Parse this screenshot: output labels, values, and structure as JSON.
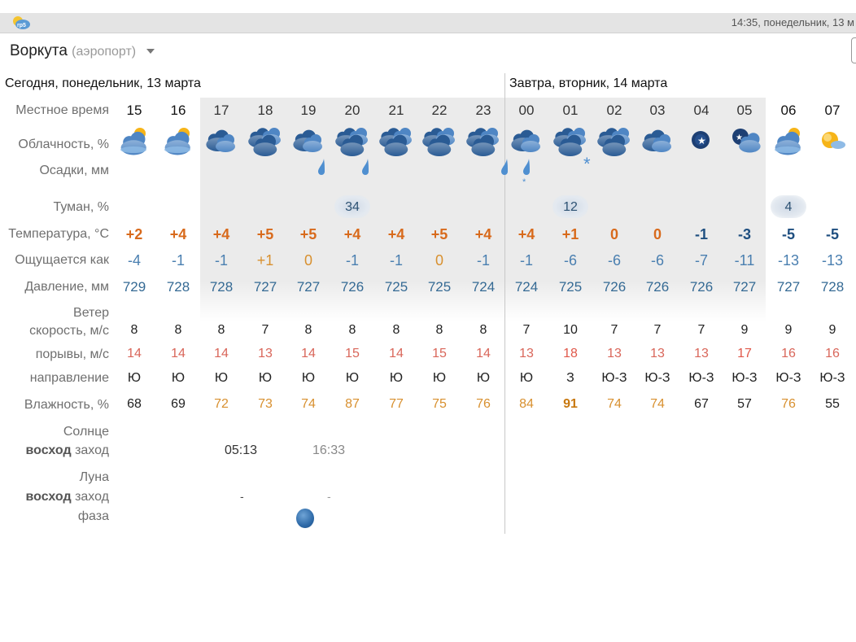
{
  "status": {
    "time": "14:35, понедельник, 13 м",
    "app_logo": "rp5"
  },
  "location": {
    "city": "Воркута",
    "sub": "(аэропорт)"
  },
  "days": {
    "today": "Сегодня, понедельник, 13 марта",
    "tomorrow": "Завтра, вторник, 14 марта"
  },
  "labels": {
    "local_time": "Местное время",
    "cloud": "Облачность, %",
    "precip": "Осадки, мм",
    "fog": "Туман, %",
    "temp": "Температура, °C",
    "feels": "Ощущается как",
    "pressure": "Давление, мм",
    "wind": "Ветер",
    "wind_speed": "скорость, м/с",
    "gusts": "порывы, м/с",
    "direction": "направление",
    "humidity": "Влажность, %",
    "sun": "Солнце",
    "sunrise": "восход",
    "sunset": "заход",
    "moon": "Луна",
    "moonrise": "восход",
    "moonset": "заход",
    "phase": "фаза"
  },
  "hours": [
    "15",
    "16",
    "17",
    "18",
    "19",
    "20",
    "21",
    "22",
    "23",
    "00",
    "01",
    "02",
    "03",
    "04",
    "05",
    "06",
    "07"
  ],
  "cloud_icons": [
    "partly-cloudy-icon",
    "partly-cloudy-icon",
    "cloudy-icon",
    "overcast-icon",
    "cloudy-icon",
    "overcast-icon",
    "overcast-icon",
    "overcast-icon",
    "overcast-icon",
    "cloudy-icon",
    "overcast-icon",
    "overcast-icon",
    "cloudy-icon",
    "night-clear-icon",
    "night-cloudy-icon",
    "partly-cloudy-icon",
    "sunny-icon"
  ],
  "precip_icons": [
    "",
    "",
    "",
    "",
    "rain-drop-icon",
    "rain-drop-icon",
    "",
    "",
    "rain-drop-icon",
    "rain-snow-icon",
    "snowflake-icon",
    "",
    "",
    "",
    "",
    "",
    ""
  ],
  "fog": [
    "",
    "",
    "",
    "",
    "",
    "34",
    "",
    "",
    "",
    "",
    "12",
    "",
    "",
    "",
    "",
    "4",
    ""
  ],
  "temps": [
    "+2",
    "+4",
    "+4",
    "+5",
    "+5",
    "+4",
    "+4",
    "+5",
    "+4",
    "+4",
    "+1",
    "0",
    "0",
    "-1",
    "-3",
    "-5",
    "-5"
  ],
  "feels": [
    "-4",
    "-1",
    "-1",
    "+1",
    "0",
    "-1",
    "-1",
    "0",
    "-1",
    "-1",
    "-6",
    "-6",
    "-6",
    "-7",
    "-11",
    "-13",
    "-13"
  ],
  "pressure": [
    "729",
    "728",
    "728",
    "727",
    "727",
    "726",
    "725",
    "725",
    "724",
    "724",
    "725",
    "726",
    "726",
    "726",
    "727",
    "727",
    "728"
  ],
  "wind_speed": [
    "8",
    "8",
    "8",
    "7",
    "8",
    "8",
    "8",
    "8",
    "8",
    "7",
    "10",
    "7",
    "7",
    "7",
    "9",
    "9",
    "9"
  ],
  "gusts": [
    "14",
    "14",
    "14",
    "13",
    "14",
    "15",
    "14",
    "15",
    "14",
    "13",
    "18",
    "13",
    "13",
    "13",
    "17",
    "16",
    "16"
  ],
  "direction": [
    "Ю",
    "Ю",
    "Ю",
    "Ю",
    "Ю",
    "Ю",
    "Ю",
    "Ю",
    "Ю",
    "Ю",
    "З",
    "Ю-З",
    "Ю-З",
    "Ю-З",
    "Ю-З",
    "Ю-З",
    "Ю-З"
  ],
  "humidity": [
    "68",
    "69",
    "72",
    "73",
    "74",
    "87",
    "77",
    "75",
    "76",
    "84",
    "91",
    "74",
    "74",
    "67",
    "57",
    "76",
    "55"
  ],
  "sun": {
    "sunrise": "05:13",
    "sunset": "16:33"
  },
  "moon": {
    "moonrise": "-",
    "moonset": "-",
    "phase_icon": "waning-moon-icon"
  },
  "colors": {
    "warm": "#d86a1c",
    "zero": "#d86a1c",
    "cold": "#1f4f80",
    "feel_warm": "#d8902f",
    "feel_cold": "#4a7fb0",
    "gust": "#d9665a",
    "gust_strong": "#e0584a",
    "hum_normal": "#222",
    "hum_high": "#d8902f",
    "hum_max": "#c8780f",
    "pressure": "#356a94"
  }
}
